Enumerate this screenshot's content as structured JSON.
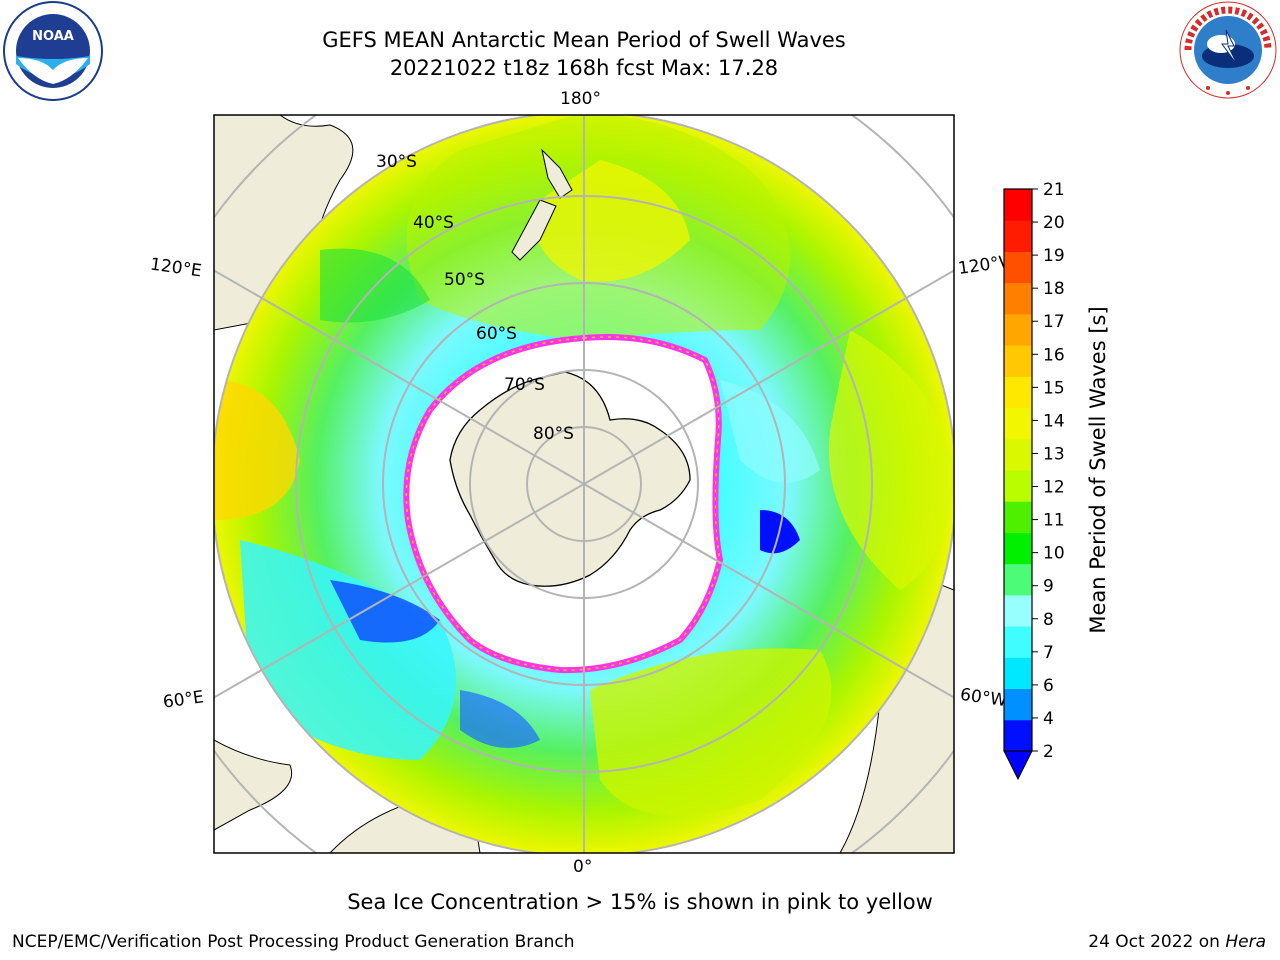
{
  "title": {
    "line1": "GEFS MEAN Antarctic Mean Period of Swell Waves",
    "line2": "20221022 t18z 168h fcst   Max: 17.28"
  },
  "map": {
    "projection": "south-polar-stereographic",
    "meridian_labels": {
      "top": "180°",
      "bottom": "0°",
      "upper_left": "120°E",
      "upper_right": "120°W",
      "lower_left": "60°E",
      "lower_right": "60°W"
    },
    "latitude_labels": [
      "30°S",
      "40°S",
      "50°S",
      "60°S",
      "70°S",
      "80°S"
    ],
    "colors": {
      "land": "#efedda",
      "ocean_no_data": "#ffffff",
      "graticule": "#b4b4b4",
      "sea_ice_edge": "#ff33ee"
    }
  },
  "colorbar": {
    "label": "Mean Period of Swell Waves [s]",
    "ticks": [
      "2",
      "4",
      "6",
      "7",
      "8",
      "9",
      "10",
      "11",
      "12",
      "13",
      "14",
      "15",
      "16",
      "17",
      "18",
      "19",
      "20",
      "21"
    ],
    "colors": [
      "#0010ff",
      "#0090ff",
      "#00e8ff",
      "#3ffeff",
      "#98ffff",
      "#4cfc78",
      "#00f000",
      "#4ef000",
      "#bafc00",
      "#daf800",
      "#f2f600",
      "#ffe800",
      "#ffc800",
      "#ffa600",
      "#ff8000",
      "#ff5000",
      "#ff1c00",
      "#ff0000"
    ],
    "extend": "min",
    "extend_color": "#0000ff"
  },
  "caption": "Sea Ice Concentration > 15% is shown in pink to yellow",
  "footer": {
    "left": "NCEP/EMC/Verification Post Processing Product Generation Branch",
    "date": "24 Oct 2022 on ",
    "machine": "Hera"
  },
  "logos": {
    "left": "NOAA",
    "left_ring": "NATIONAL OCEANIC AND ATMOSPHERIC ADMINISTRATION · U.S. DEPARTMENT OF COMMERCE",
    "right_ring": "NATIONAL WEATHER SERVICE"
  }
}
